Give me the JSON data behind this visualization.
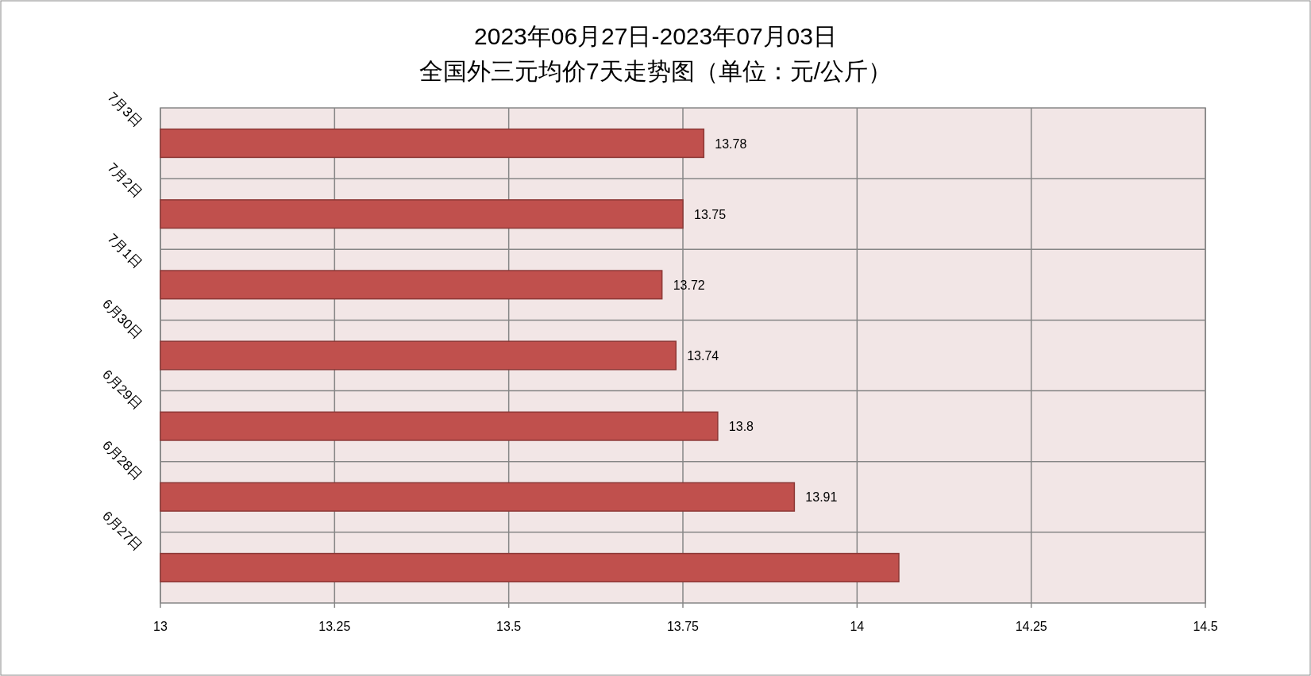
{
  "chart_data": {
    "type": "bar",
    "orientation": "horizontal",
    "title": "2023年06月27日-2023年07月03日",
    "subtitle": "全国外三元均价7天走势图（单位：元/公斤）",
    "categories": [
      "7月3日",
      "7月2日",
      "7月1日",
      "6月30日",
      "6月29日",
      "6月28日",
      "6月27日"
    ],
    "values": [
      13.78,
      13.75,
      13.72,
      13.74,
      13.8,
      13.91,
      14.06
    ],
    "value_labels": [
      "13.78",
      "13.75",
      "13.72",
      "13.74",
      "13.8",
      "13.91",
      null
    ],
    "color": "#c0504d",
    "xlim": [
      13,
      14.5
    ],
    "xticks": [
      13,
      13.25,
      13.5,
      13.75,
      14,
      14.25,
      14.5
    ],
    "grid": true
  }
}
